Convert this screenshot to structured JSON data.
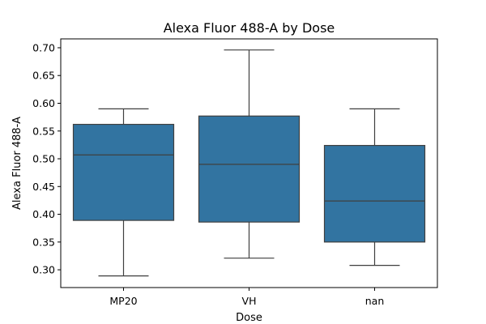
{
  "chart_data": {
    "type": "box",
    "title": "Alexa Fluor 488-A by Dose",
    "xlabel": "Dose",
    "ylabel": "Alexa Fluor 488-A",
    "categories": [
      "MP20",
      "VH",
      "nan"
    ],
    "boxes": [
      {
        "category": "MP20",
        "whisker_low": 0.289,
        "q1": 0.389,
        "median": 0.507,
        "q3": 0.562,
        "whisker_high": 0.59
      },
      {
        "category": "VH",
        "whisker_low": 0.321,
        "q1": 0.386,
        "median": 0.49,
        "q3": 0.577,
        "whisker_high": 0.696
      },
      {
        "category": "nan",
        "whisker_low": 0.308,
        "q1": 0.35,
        "median": 0.424,
        "q3": 0.524,
        "whisker_high": 0.59
      }
    ],
    "ylim": [
      0.268,
      0.716
    ],
    "yticks": [
      0.3,
      0.35,
      0.4,
      0.45,
      0.5,
      0.55,
      0.6,
      0.65,
      0.7
    ],
    "ytick_labels": [
      "0.30",
      "0.35",
      "0.40",
      "0.45",
      "0.50",
      "0.55",
      "0.60",
      "0.65",
      "0.70"
    ],
    "box_color": "#3274a1",
    "line_color": "#3f3f3f",
    "grid": false
  }
}
